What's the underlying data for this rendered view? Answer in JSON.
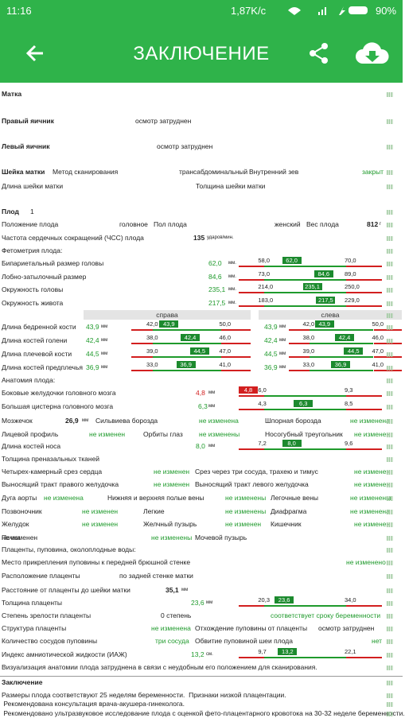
{
  "status_bar": {
    "time": "11:16",
    "speed": "1,87K/c",
    "battery": "90%"
  },
  "app_bar": {
    "title": "ЗАКЛЮЧЕНИЕ"
  },
  "rows": [
    {
      "texts": [
        "Матка"
      ]
    },
    {
      "texts": [
        "Правый яичник",
        "осмотр затруднен"
      ]
    },
    {
      "texts": [
        "Левый яичник",
        "осмотр затруднен"
      ]
    },
    {
      "texts": [
        "Шейка матки",
        "Метод сканирования",
        "трансабдоминальный",
        "Внутренний зев",
        "закрыт"
      ]
    },
    {
      "texts": [
        "Длина шейки матки",
        "Толщина шейки матки"
      ]
    },
    {
      "texts": [
        "Плод",
        "1"
      ]
    },
    {
      "texts": [
        "Положение плода",
        "головное",
        "Пол плода",
        "женский",
        "Вес плода",
        "812",
        "г"
      ]
    },
    {
      "texts": [
        "Частота сердечных сокращений (ЧСС) плода",
        "135",
        "ударов/мин."
      ]
    },
    {
      "texts": [
        "Фетометрия плода:"
      ]
    },
    {
      "texts": [
        "Бипариетальный размер головы",
        "62,0",
        "мм."
      ],
      "gauges": [
        {
          "min": "58,0",
          "value": "62,0",
          "max": "70,0"
        }
      ]
    },
    {
      "texts": [
        "Лобно-затылочный размер",
        "84,6",
        "мм."
      ],
      "gauges": [
        {
          "min": "73,0",
          "value": "84,6",
          "max": "89,0"
        }
      ]
    },
    {
      "texts": [
        "Окружность головы",
        "235,1",
        "мм."
      ],
      "gauges": [
        {
          "min": "214,0",
          "value": "235,1",
          "max": "250,0"
        }
      ]
    },
    {
      "texts": [
        "Окружность живота",
        "217,5",
        "мм."
      ],
      "gauges": [
        {
          "min": "183,0",
          "value": "217,5",
          "max": "229,0"
        }
      ]
    },
    {
      "texts": [
        "справа",
        "слева"
      ]
    },
    {
      "texts": [
        "Длина бедренной кости",
        "43,9",
        "мм",
        "43,9",
        "мм"
      ],
      "gauges": [
        {
          "min": "42,0",
          "value": "43,9",
          "max": "50,0"
        },
        {
          "min": "42,0",
          "value": "43,9",
          "max": "50,0"
        }
      ]
    },
    {
      "texts": [
        "Длина костей голени",
        "42,4",
        "мм",
        "42,4",
        "мм"
      ],
      "gauges": [
        {
          "min": "38,0",
          "value": "42,4",
          "max": "46,0"
        },
        {
          "min": "38,0",
          "value": "42,4",
          "max": "46,0"
        }
      ]
    },
    {
      "texts": [
        "Длина плечевой кости",
        "44,5",
        "мм",
        "44,5",
        "мм"
      ],
      "gauges": [
        {
          "min": "39,0",
          "value": "44,5",
          "max": "47,0"
        },
        {
          "min": "39,0",
          "value": "44,5",
          "max": "47,0"
        }
      ]
    },
    {
      "texts": [
        "Длина костей предплечья",
        "36,9",
        "мм",
        "36,9",
        "мм"
      ],
      "gauges": [
        {
          "min": "33,0",
          "value": "36,9",
          "max": "41,0"
        },
        {
          "min": "33,0",
          "value": "36,9",
          "max": "41,0"
        }
      ]
    },
    {
      "texts": [
        "Анатомия плода:"
      ]
    },
    {
      "texts": [
        "Боковые желудочки головного мозга",
        "4,8",
        "мм"
      ],
      "gauges": [
        {
          "min": "6,0",
          "value": "4,8",
          "max": "9,3"
        }
      ]
    },
    {
      "texts": [
        "Большая цистерна головного мозга",
        "6,3",
        "мм"
      ],
      "gauges": [
        {
          "min": "4,3",
          "value": "6,3",
          "max": "8,5"
        }
      ]
    },
    {
      "texts": [
        "Мозжечок",
        "26,9",
        "мм",
        "Сильвиева борозда",
        "не изменена",
        "Шпорная борозда",
        "не изменена"
      ]
    },
    {
      "texts": [
        "Лицевой профиль",
        "не изменен",
        "Орбиты глаз",
        "не изменены",
        "Носогубный треугольник",
        "не изменен"
      ]
    },
    {
      "texts": [
        "Длина костей носа",
        "8,0",
        "мм"
      ],
      "gauges": [
        {
          "min": "7,2",
          "value": "8,0",
          "max": "9,6"
        }
      ]
    },
    {
      "texts": [
        "Толщина преназальных тканей"
      ]
    },
    {
      "texts": [
        "Четырех-камерный срез сердца",
        "не изменен",
        "Срез через три сосуда, трахею и тимус",
        "не изменен"
      ]
    },
    {
      "texts": [
        "Выносящий тракт правого желудочка",
        "не изменен",
        "Выносящий тракт левого желудочка",
        "не изменен"
      ]
    },
    {
      "texts": [
        "Дуга аорты",
        "не изменена",
        "Нижняя и верхняя полые вены",
        "не изменены",
        "Легочные вены",
        "не изменены"
      ]
    },
    {
      "texts": [
        "Позвоночник",
        "не изменен",
        "Легкие",
        "не изменены",
        "Диафрагма",
        "не изменена"
      ]
    },
    {
      "texts": [
        "Желудок",
        "не изменен",
        "Желчный пузырь",
        "не изменен",
        "Кишечник",
        "не изменен"
      ]
    },
    {
      "texts": [
        "Почки",
        "не изменены",
        "Мочевой пузырь",
        "не изменен"
      ]
    },
    {
      "texts": [
        "Плаценты, пуповина, околоплодные воды:"
      ]
    },
    {
      "texts": [
        "Место прикрепления пуповины к передней брюшной стенке",
        "не изменено"
      ]
    },
    {
      "texts": [
        "Расположение плаценты",
        "по задней стенке матки"
      ]
    },
    {
      "texts": [
        "Расстояние от плаценты до шейки матки",
        "35,1",
        "мм"
      ]
    },
    {
      "texts": [
        "Толщина плаценты",
        "23,6",
        "мм"
      ],
      "gauges": [
        {
          "min": "20,3",
          "value": "23,6",
          "max": "34,0"
        }
      ]
    },
    {
      "texts": [
        "Степень зрелости плаценты",
        "0 степень",
        "соответствует сроку беременности"
      ]
    },
    {
      "texts": [
        "Структура плаценты",
        "не изменена",
        "Отхождение пуповины от плаценты",
        "осмотр затруднен"
      ]
    },
    {
      "texts": [
        "Количество сосудов пуповины",
        "три сосуда",
        "Обвитие пуповиной шеи плода",
        "нет"
      ]
    },
    {
      "texts": [
        "Индекс амниотической жидкости (ИАЖ)",
        "13,2",
        "см."
      ],
      "gauges": [
        {
          "min": "9,7",
          "value": "13,2",
          "max": "22,1"
        }
      ]
    },
    {
      "texts": [
        "Визуализация анатомии плода затруднена в связи с неудобным его положением для сканирования."
      ]
    },
    {
      "texts": [
        "Заключение"
      ]
    },
    {
      "texts": [
        "Размеры плода соответствуют 25 неделям беременности.  Признаки низкой плацентации."
      ]
    },
    {
      "texts": [
        " Рекомендована консультация врача-акушера-гинеколога."
      ]
    },
    {
      "texts": [
        " Рекомендовано ультразвуковое исследование плода с оценкой фето-плацентарного кровотока на 30-32 неделе беременности."
      ]
    }
  ]
}
